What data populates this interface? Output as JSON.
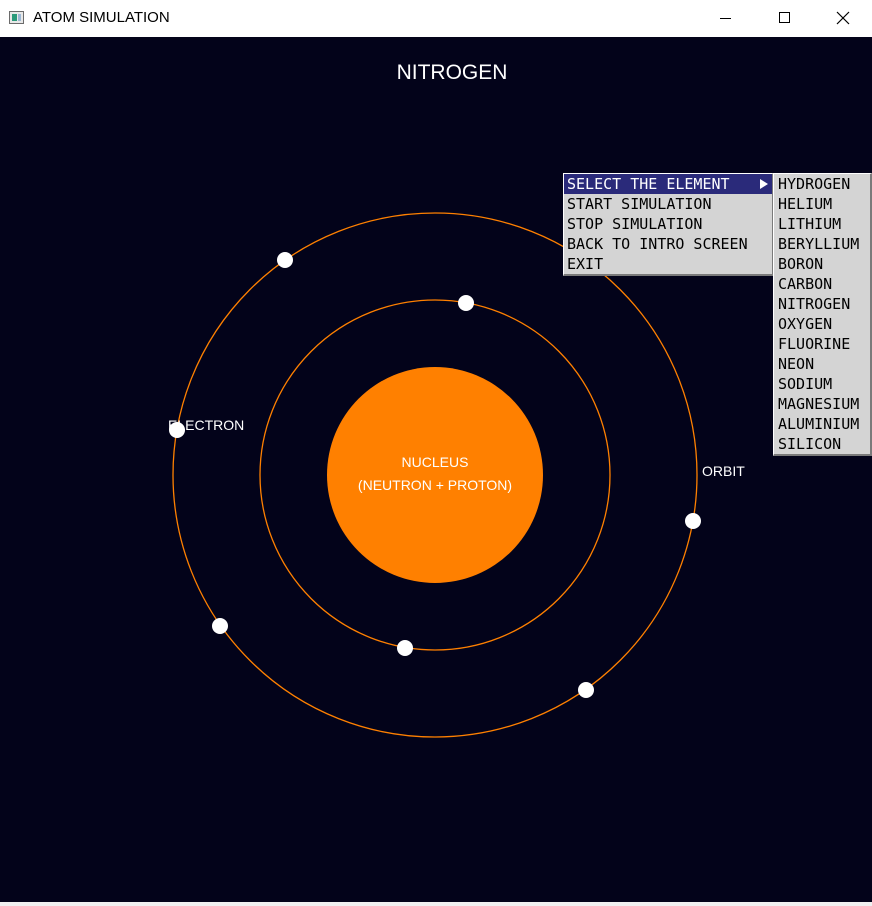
{
  "window": {
    "title": "ATOM SIMULATION",
    "icon": "app-icon",
    "controls": [
      "minimize-icon",
      "maximize-icon",
      "close-icon"
    ]
  },
  "scene": {
    "element_name": "NITROGEN",
    "nucleus_label_1": "NUCLEUS",
    "nucleus_label_2": "(NEUTRON + PROTON)",
    "electron_label": "ELECTRON",
    "orbit_label": "ORBIT",
    "colors": {
      "background": "#03031a",
      "nucleus": "#ff8000",
      "orbit": "#ff8000",
      "electron": "#ffffff"
    },
    "shells": [
      {
        "electrons": 2
      },
      {
        "electrons": 5
      }
    ]
  },
  "menu": {
    "items": [
      {
        "label": "SELECT THE ELEMENT",
        "has_submenu": true,
        "selected": true
      },
      {
        "label": "START SIMULATION"
      },
      {
        "label": "STOP SIMULATION"
      },
      {
        "label": "BACK TO INTRO SCREEN"
      },
      {
        "label": "EXIT"
      }
    ],
    "submenu": [
      "HYDROGEN",
      "HELIUM",
      "LITHIUM",
      "BERYLLIUM",
      "BORON",
      "CARBON",
      "NITROGEN",
      "OXYGEN",
      "FLUORINE",
      "NEON",
      "SODIUM",
      "MAGNESIUM",
      "ALUMINIUM",
      "SILICON"
    ]
  }
}
